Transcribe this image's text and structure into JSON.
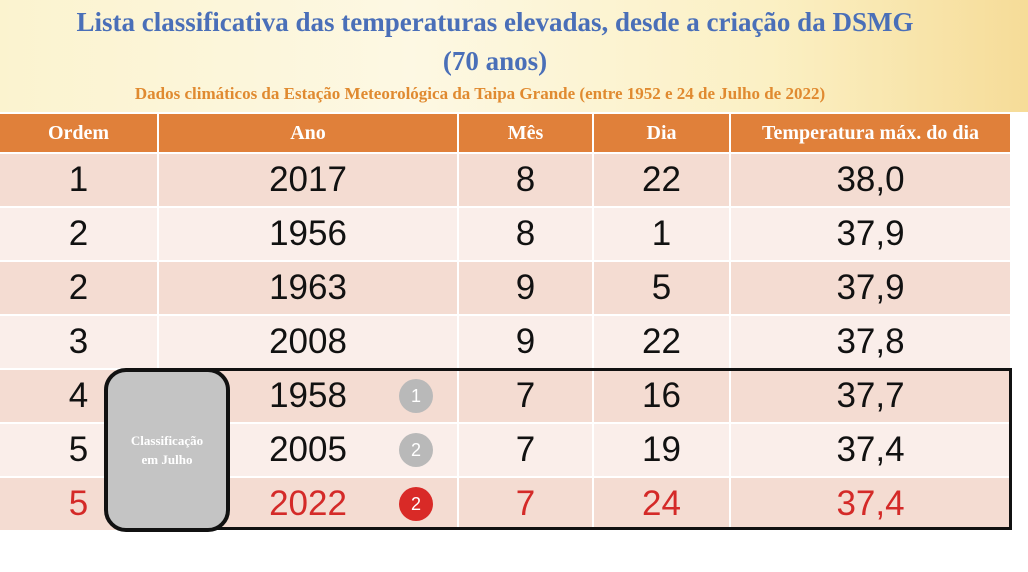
{
  "header": {
    "title_line1": "Lista classificativa das temperaturas elevadas, desde a criação da DSMG",
    "title_line2": "(70 anos)",
    "subtitle": "Dados climáticos da Estação Meteorológica da Taipa Grande  (entre 1952 e 24 de Julho de 2022)"
  },
  "table": {
    "columns": [
      "Ordem",
      "Ano",
      "Mês",
      "Dia",
      "Temperatura máx. do dia"
    ],
    "rows": [
      {
        "ordem": "1",
        "ano": "2017",
        "mes": "8",
        "dia": "22",
        "temp": "38,0",
        "july_rank": ""
      },
      {
        "ordem": "2",
        "ano": "1956",
        "mes": "8",
        "dia": "1",
        "temp": "37,9",
        "july_rank": ""
      },
      {
        "ordem": "2",
        "ano": "1963",
        "mes": "9",
        "dia": "5",
        "temp": "37,9",
        "july_rank": ""
      },
      {
        "ordem": "3",
        "ano": "2008",
        "mes": "9",
        "dia": "22",
        "temp": "37,8",
        "july_rank": ""
      },
      {
        "ordem": "4",
        "ano": "1958",
        "mes": "7",
        "dia": "16",
        "temp": "37,7",
        "july_rank": "1"
      },
      {
        "ordem": "5",
        "ano": "2005",
        "mes": "7",
        "dia": "19",
        "temp": "37,4",
        "july_rank": "2"
      },
      {
        "ordem": "5",
        "ano": "2022",
        "mes": "7",
        "dia": "24",
        "temp": "37,4",
        "july_rank": "2"
      }
    ]
  },
  "july_box": {
    "label_line1": "Classificação",
    "label_line2": "em Julho"
  },
  "colors": {
    "title": "#4a6fb8",
    "subtitle": "#e08a30",
    "header_row": "#e0803a",
    "highlight": "#d42a28",
    "july_rank_circle": "#b9b9b9",
    "july_rank_circle_current": "#d92a27"
  }
}
